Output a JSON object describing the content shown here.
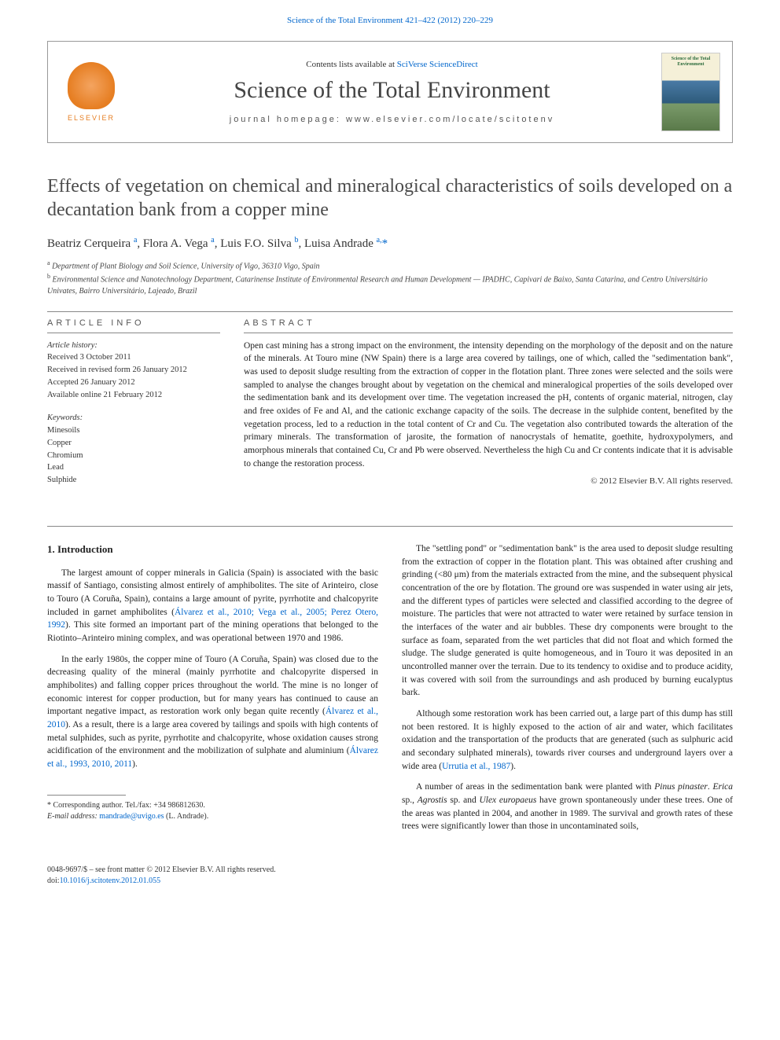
{
  "top_link": {
    "prefix": "",
    "text": "Science of the Total Environment 421–422 (2012) 220–229"
  },
  "header": {
    "elsevier_label": "ELSEVIER",
    "contents_prefix": "Contents lists available at ",
    "contents_link": "SciVerse ScienceDirect",
    "journal_name": "Science of the Total Environment",
    "homepage_label": "journal homepage: ",
    "homepage_url": "www.elsevier.com/locate/scitotenv",
    "cover_title": "Science of the Total Environment",
    "colors": {
      "link": "#0066cc",
      "elsevier_orange": "#e67e22",
      "border": "#999999"
    }
  },
  "article": {
    "title": "Effects of vegetation on chemical and mineralogical characteristics of soils developed on a decantation bank from a copper mine",
    "authors_html": "Beatriz Cerqueira <sup>a</sup>, Flora A. Vega <sup>a</sup>, Luis F.O. Silva <sup>b</sup>, Luisa Andrade <sup>a,</sup><span class='star'>*</span>",
    "affiliations": [
      {
        "sup": "a",
        "text": "Department of Plant Biology and Soil Science, University of Vigo, 36310 Vigo, Spain"
      },
      {
        "sup": "b",
        "text": "Environmental Science and Nanotechnology Department, Catarinense Institute of Environmental Research and Human Development — IPADHC, Capivari de Baixo, Santa Catarina, and Centro Universitário Univates, Bairro Universitário, Lajeado, Brazil"
      }
    ]
  },
  "article_info": {
    "heading": "ARTICLE INFO",
    "history_label": "Article history:",
    "history": [
      "Received 3 October 2011",
      "Received in revised form 26 January 2012",
      "Accepted 26 January 2012",
      "Available online 21 February 2012"
    ],
    "keywords_label": "Keywords:",
    "keywords": [
      "Minesoils",
      "Copper",
      "Chromium",
      "Lead",
      "Sulphide"
    ]
  },
  "abstract": {
    "heading": "ABSTRACT",
    "text": "Open cast mining has a strong impact on the environment, the intensity depending on the morphology of the deposit and on the nature of the minerals. At Touro mine (NW Spain) there is a large area covered by tailings, one of which, called the \"sedimentation bank\", was used to deposit sludge resulting from the extraction of copper in the flotation plant. Three zones were selected and the soils were sampled to analyse the changes brought about by vegetation on the chemical and mineralogical properties of the soils developed over the sedimentation bank and its development over time. The vegetation increased the pH, contents of organic material, nitrogen, clay and free oxides of Fe and Al, and the cationic exchange capacity of the soils. The decrease in the sulphide content, benefited by the vegetation process, led to a reduction in the total content of Cr and Cu. The vegetation also contributed towards the alteration of the primary minerals. The transformation of jarosite, the formation of nanocrystals of hematite, goethite, hydroxypolymers, and amorphous minerals that contained Cu, Cr and Pb were observed. Nevertheless the high Cu and Cr contents indicate that it is advisable to change the restoration process.",
    "copyright": "© 2012 Elsevier B.V. All rights reserved."
  },
  "body": {
    "section_heading": "1. Introduction",
    "left_paragraphs": [
      "The largest amount of copper minerals in Galicia (Spain) is associated with the basic massif of Santiago, consisting almost entirely of amphibolites. The site of Arinteiro, close to Touro (A Coruña, Spain), contains a large amount of pyrite, pyrrhotite and chalcopyrite included in garnet amphibolites (<span class='cite'>Álvarez et al., 2010; Vega et al., 2005; Perez Otero, 1992</span>). This site formed an important part of the mining operations that belonged to the Riotinto–Arinteiro mining complex, and was operational between 1970 and 1986.",
      "In the early 1980s, the copper mine of Touro (A Coruña, Spain) was closed due to the decreasing quality of the mineral (mainly pyrrhotite and chalcopyrite dispersed in amphibolites) and falling copper prices throughout the world. The mine is no longer of economic interest for copper production, but for many years has continued to cause an important negative impact, as restoration work only began quite recently (<span class='cite'>Álvarez et al., 2010</span>). As a result, there is a large area covered by tailings and spoils with high contents of metal sulphides, such as pyrite, pyrrhotite and chalcopyrite, whose oxidation causes strong acidification of the environment and the mobilization of sulphate and aluminium (<span class='cite'>Álvarez et al., 1993, 2010, 2011</span>)."
    ],
    "right_paragraphs": [
      "The \"settling pond\" or \"sedimentation bank\" is the area used to deposit sludge resulting from the extraction of copper in the flotation plant. This was obtained after crushing and grinding (<80 μm) from the materials extracted from the mine, and the subsequent physical concentration of the ore by flotation. The ground ore was suspended in water using air jets, and the different types of particles were selected and classified according to the degree of moisture. The particles that were not attracted to water were retained by surface tension in the interfaces of the water and air bubbles. These dry components were brought to the surface as foam, separated from the wet particles that did not float and which formed the sludge. The sludge generated is quite homogeneous, and in Touro it was deposited in an uncontrolled manner over the terrain. Due to its tendency to oxidise and to produce acidity, it was covered with soil from the surroundings and ash produced by burning eucalyptus bark.",
      "Although some restoration work has been carried out, a large part of this dump has still not been restored. It is highly exposed to the action of air and water, which facilitates oxidation and the transportation of the products that are generated (such as sulphuric acid and secondary sulphated minerals), towards river courses and underground layers over a wide area (<span class='cite'>Urrutia et al., 1987</span>).",
      "A number of areas in the sedimentation bank were planted with <span class='ital'>Pinus pinaster</span>. <span class='ital'>Erica</span> sp., <span class='ital'>Agrostis</span> sp. and <span class='ital'>Ulex europaeus</span> have grown spontaneously under these trees. One of the areas was planted in 2004, and another in 1989. The survival and growth rates of these trees were significantly lower than those in uncontaminated soils,"
    ]
  },
  "footnote": {
    "corresponding": "* Corresponding author. Tel./fax: +34 986812630.",
    "email_label": "E-mail address:",
    "email": "mandrade@uvigo.es",
    "email_suffix": "(L. Andrade)."
  },
  "footer": {
    "issn_line": "0048-9697/$ – see front matter © 2012 Elsevier B.V. All rights reserved.",
    "doi_label": "doi:",
    "doi": "10.1016/j.scitotenv.2012.01.055"
  }
}
